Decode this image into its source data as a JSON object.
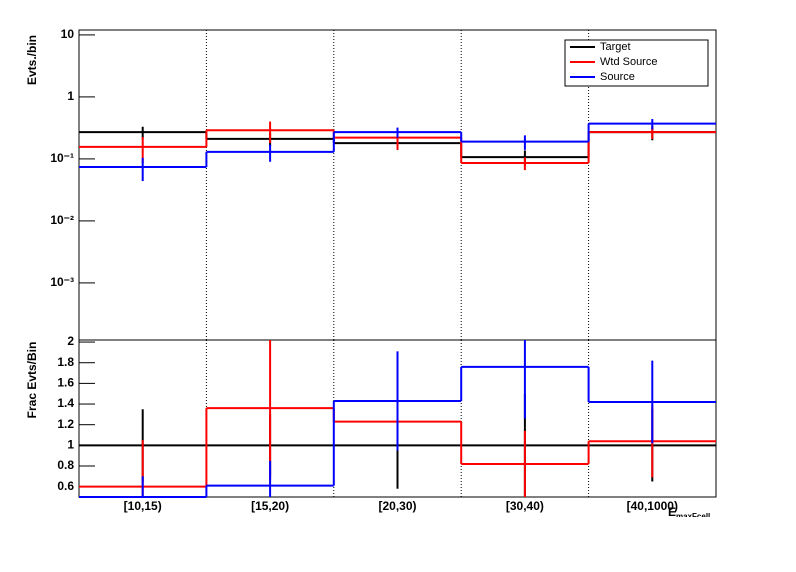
{
  "chart_data": [
    {
      "type": "step",
      "y_label": "Evts./bin",
      "log_scale": true,
      "grid_x": true,
      "legend": "top-right",
      "categories": [
        "[10,15)",
        "[15,20)",
        "[20,30)",
        "[30,40)",
        "[40,1000)"
      ],
      "ylim": [
        0.00012,
        12
      ],
      "yticks": [
        {
          "value": 0.001,
          "label": "10⁻³"
        },
        {
          "value": 0.01,
          "label": "10⁻²"
        },
        {
          "value": 0.1,
          "label": "10⁻¹"
        },
        1,
        10
      ],
      "series": [
        {
          "name": "Target",
          "color": "#000000",
          "values": [
            0.27,
            0.21,
            0.18,
            0.107,
            0.27
          ],
          "errors": [
            0.06,
            0.05,
            0.04,
            0.03,
            0.07
          ]
        },
        {
          "name": "Wtd Source",
          "color": "#ff0000",
          "values": [
            0.156,
            0.29,
            0.22,
            0.086,
            0.27
          ],
          "errors": [
            0.07,
            0.11,
            0.08,
            0.02,
            0.06
          ]
        },
        {
          "name": "Source",
          "color": "#0000ff",
          "values": [
            0.074,
            0.13,
            0.27,
            0.19,
            0.37
          ],
          "errors": [
            0.03,
            0.04,
            0.05,
            0.05,
            0.07
          ]
        }
      ]
    },
    {
      "type": "step",
      "y_label": "Frac Evts/Bin",
      "x_label": "E",
      "x_label_sub": "maxFcell",
      "log_scale": false,
      "grid_x": true,
      "categories": [
        "[10,15)",
        "[15,20)",
        "[20,30)",
        "[30,40)",
        "[40,1000)"
      ],
      "ylim": [
        0.5,
        2.02
      ],
      "yticks": [
        0.6,
        0.8,
        1,
        1.2,
        1.4,
        1.6,
        1.8,
        2
      ],
      "series": [
        {
          "name": "Target",
          "color": "#000000",
          "values": [
            1,
            1,
            1,
            1,
            1
          ],
          "errors": [
            0.35,
            0.3,
            0.42,
            0.5,
            0.35
          ]
        },
        {
          "name": "Wtd Source",
          "color": "#ff0000",
          "values": [
            0.6,
            1.36,
            1.23,
            0.82,
            1.04
          ],
          "errors": [
            0.45,
            0.7,
            0.28,
            0.32,
            0.35
          ]
        },
        {
          "name": "Source",
          "color": "#0000ff",
          "values": [
            0.5,
            0.61,
            1.43,
            1.76,
            1.42
          ],
          "errors": [
            0.2,
            0.24,
            0.48,
            0.5,
            0.4
          ]
        }
      ]
    }
  ]
}
